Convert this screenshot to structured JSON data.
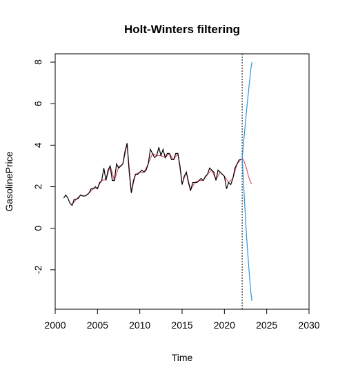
{
  "chart_data": {
    "type": "line",
    "title": "Holt-Winters filtering",
    "x_label": "Time",
    "y_label": "GasolinePrice",
    "xlim": [
      2000,
      2030
    ],
    "ylim": [
      -3.9,
      8.4
    ],
    "xticks": [
      2000,
      2005,
      2010,
      2015,
      2020,
      2025,
      2030
    ],
    "yticks": [
      -2,
      0,
      2,
      4,
      6,
      8
    ],
    "forecast_start": 2022.1,
    "series": [
      {
        "color": "#000000",
        "x": [
          2001.0,
          2001.25,
          2001.5,
          2001.75,
          2002.0,
          2002.25,
          2002.5,
          2002.75,
          2003.0,
          2003.25,
          2003.5,
          2003.75,
          2004.0,
          2004.25,
          2004.5,
          2004.75,
          2005.0,
          2005.25,
          2005.5,
          2005.75,
          2006.0,
          2006.25,
          2006.5,
          2006.75,
          2007.0,
          2007.25,
          2007.5,
          2007.75,
          2008.0,
          2008.25,
          2008.5,
          2008.75,
          2009.0,
          2009.25,
          2009.5,
          2009.75,
          2010.0,
          2010.25,
          2010.5,
          2010.75,
          2011.0,
          2011.25,
          2011.5,
          2011.75,
          2012.0,
          2012.25,
          2012.5,
          2012.75,
          2013.0,
          2013.25,
          2013.5,
          2013.75,
          2014.0,
          2014.25,
          2014.5,
          2014.75,
          2015.0,
          2015.25,
          2015.5,
          2015.75,
          2016.0,
          2016.25,
          2016.5,
          2016.75,
          2017.0,
          2017.25,
          2017.5,
          2017.75,
          2018.0,
          2018.25,
          2018.5,
          2018.75,
          2019.0,
          2019.25,
          2019.5,
          2019.75,
          2020.0,
          2020.25,
          2020.5,
          2020.75,
          2021.0,
          2021.25,
          2021.5,
          2021.75,
          2022.0
        ],
        "values": [
          1.45,
          1.6,
          1.45,
          1.2,
          1.1,
          1.4,
          1.4,
          1.45,
          1.6,
          1.55,
          1.55,
          1.6,
          1.7,
          1.9,
          1.9,
          2.0,
          1.9,
          2.2,
          2.3,
          2.9,
          2.3,
          2.8,
          3.0,
          2.3,
          2.3,
          3.1,
          2.9,
          3.0,
          3.1,
          3.7,
          4.1,
          2.7,
          1.7,
          2.3,
          2.6,
          2.6,
          2.7,
          2.8,
          2.7,
          2.8,
          3.1,
          3.8,
          3.6,
          3.4,
          3.5,
          3.9,
          3.5,
          3.8,
          3.4,
          3.6,
          3.6,
          3.3,
          3.3,
          3.6,
          3.6,
          3.0,
          2.1,
          2.5,
          2.7,
          2.2,
          1.8,
          2.2,
          2.2,
          2.2,
          2.3,
          2.4,
          2.3,
          2.5,
          2.6,
          2.9,
          2.8,
          2.7,
          2.3,
          2.8,
          2.7,
          2.6,
          2.5,
          1.9,
          2.2,
          2.1,
          2.4,
          2.9,
          3.1,
          3.3,
          3.3
        ]
      },
      {
        "color": "#df536b",
        "x": [
          2002.0,
          2002.5,
          2003.0,
          2003.5,
          2004.0,
          2004.5,
          2005.0,
          2005.5,
          2006.0,
          2006.5,
          2007.0,
          2007.5,
          2008.0,
          2008.5,
          2009.0,
          2009.5,
          2010.0,
          2010.5,
          2011.0,
          2011.5,
          2012.0,
          2012.5,
          2013.0,
          2013.5,
          2014.0,
          2014.5,
          2015.0,
          2015.5,
          2016.0,
          2016.5,
          2017.0,
          2017.5,
          2018.0,
          2018.5,
          2019.0,
          2019.5,
          2020.0,
          2020.5,
          2021.0,
          2021.5,
          2022.0
        ],
        "values": [
          1.15,
          1.4,
          1.6,
          1.55,
          1.7,
          1.9,
          1.95,
          2.3,
          2.35,
          3.0,
          2.3,
          2.95,
          3.1,
          4.05,
          1.75,
          2.6,
          2.7,
          2.7,
          3.1,
          3.6,
          3.5,
          3.5,
          3.4,
          3.6,
          3.3,
          3.6,
          2.15,
          2.7,
          1.85,
          2.2,
          2.3,
          2.3,
          2.6,
          2.8,
          2.35,
          2.7,
          2.5,
          2.2,
          2.4,
          3.1,
          3.35
        ]
      },
      {
        "color": "#df536b",
        "x": [
          2022.1,
          2022.35,
          2022.6,
          2022.85,
          2023.1,
          2023.25
        ],
        "values": [
          3.4,
          3.2,
          2.9,
          2.5,
          2.2,
          2.15
        ]
      },
      {
        "color": "#2297e6",
        "x": [
          2022.1,
          2022.35,
          2022.6,
          2022.85,
          2023.1,
          2023.25
        ],
        "values": [
          3.4,
          4.5,
          5.6,
          6.6,
          7.6,
          8.0
        ]
      },
      {
        "color": "#2297e6",
        "x": [
          2022.1,
          2022.35,
          2022.6,
          2022.85,
          2023.1,
          2023.25
        ],
        "values": [
          3.4,
          1.5,
          -0.3,
          -1.7,
          -3.0,
          -3.5
        ]
      }
    ]
  }
}
